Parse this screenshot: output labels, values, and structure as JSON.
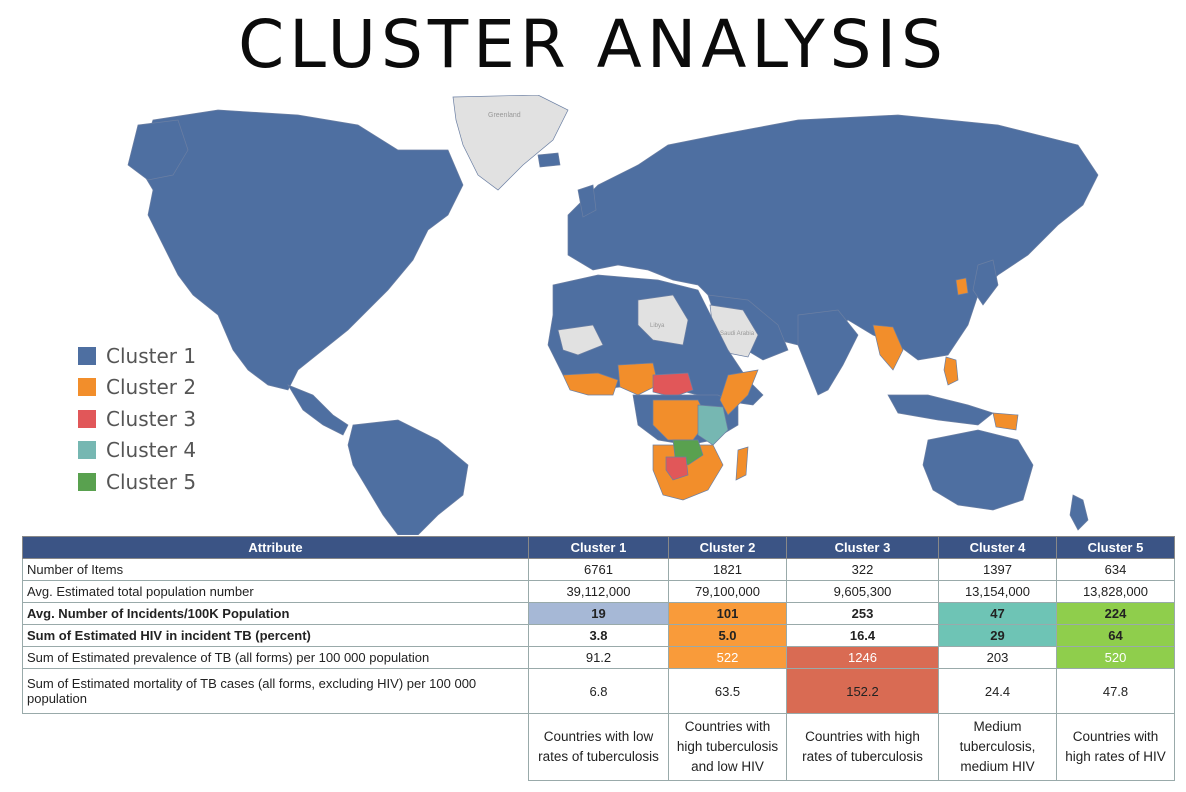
{
  "title": "CLUSTER ANALYSIS",
  "map": {
    "labels": [
      "Greenland",
      "Libya",
      "Saudi Arabia"
    ],
    "colors": {
      "cluster1": "#4e6fa1",
      "cluster2": "#f28e2b",
      "cluster3": "#e15759",
      "cluster4": "#76b7b2",
      "cluster5": "#59a14f",
      "nodata": "#e1e1e1"
    }
  },
  "legend": [
    {
      "label": "Cluster 1",
      "color": "#4e6fa1"
    },
    {
      "label": "Cluster 2",
      "color": "#f28e2b"
    },
    {
      "label": "Cluster 3",
      "color": "#e15759"
    },
    {
      "label": "Cluster 4",
      "color": "#76b7b2"
    },
    {
      "label": "Cluster 5",
      "color": "#59a14f"
    }
  ],
  "table": {
    "headers": [
      "Attribute",
      "Cluster 1",
      "Cluster 2",
      "Cluster 3",
      "Cluster 4",
      "Cluster 5"
    ],
    "rows": [
      {
        "attr": "Number of Items",
        "values": [
          "6761",
          "1821",
          "322",
          "1397",
          "634"
        ]
      },
      {
        "attr": "Avg. Estimated total population number",
        "values": [
          "39,112,000",
          "79,100,000",
          "9,605,300",
          "13,154,000",
          "13,828,000"
        ]
      },
      {
        "attr": "Avg. Number of Incidents/100K Population",
        "values": [
          "19",
          "101",
          "253",
          "47",
          "224"
        ]
      },
      {
        "attr": "Sum of Estimated HIV in incident TB (percent)",
        "values": [
          "3.8",
          "5.0",
          "16.4",
          "29",
          "64"
        ]
      },
      {
        "attr": "Sum of Estimated prevalence of TB (all forms) per 100 000 population",
        "values": [
          "91.2",
          "522",
          "1246",
          "203",
          "520"
        ]
      },
      {
        "attr": "Sum of Estimated mortality of TB cases (all forms, excluding HIV) per 100 000 population",
        "values": [
          "6.8",
          "63.5",
          "152.2",
          "24.4",
          "47.8"
        ]
      }
    ],
    "descriptions": [
      "Countries with low rates of tuberculosis",
      "Countries with high tuberculosis and low HIV",
      "Countries with high rates of tuberculosis",
      "Medium tuberculosis, medium HIV",
      "Countries with high rates of HIV"
    ],
    "highlight_colors": {
      "blue": "#a6b8d6",
      "orange": "#f99b3a",
      "red": "#d96b53",
      "teal": "#6ec4b5",
      "green": "#8fce4c"
    }
  }
}
